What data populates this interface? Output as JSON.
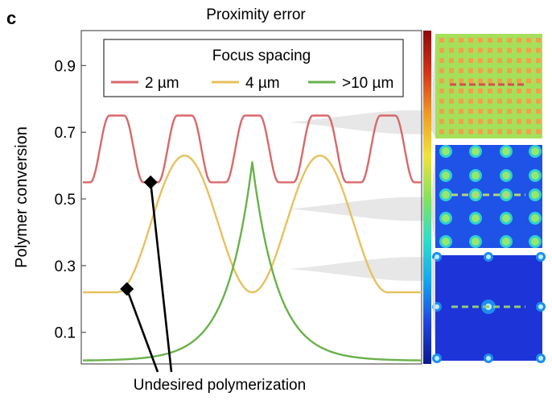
{
  "figure": {
    "panel_letter": "c",
    "annotation": "Undesired polymerization"
  },
  "chart_data": {
    "type": "line",
    "title": "Proximity error",
    "xlabel": "",
    "ylabel": "Polymer conversion",
    "ylim": [
      0.01,
      1.0
    ],
    "yticks": [
      0.1,
      0.3,
      0.5,
      0.7,
      0.9
    ],
    "ytick_labels": [
      "0.1",
      "0.3",
      "0.5",
      "0.7",
      "0.9"
    ],
    "grid": false,
    "legend": {
      "title": "Focus spacing",
      "placement": "top"
    },
    "series": [
      {
        "name": "2 µm",
        "color": "#d9686a",
        "baseline": 0.55,
        "peak": 0.75,
        "peak_positions": [
          0.1,
          0.3,
          0.5,
          0.7,
          0.9
        ],
        "profile": "2um"
      },
      {
        "name": "4 µm",
        "color": "#e7c15e",
        "baseline": 0.22,
        "peak": 0.63,
        "peak_positions": [
          0.3,
          0.7
        ],
        "profile": "4um"
      },
      {
        "name": ">10 µm",
        "color": "#6ab14c",
        "baseline": 0.015,
        "peak": 0.61,
        "peak_positions": [
          0.5
        ],
        "profile": "10um"
      }
    ],
    "markers": [
      {
        "series": "2 µm",
        "x": 0.2,
        "y": 0.55
      },
      {
        "series": "4 µm",
        "x": 0.13,
        "y": 0.23
      }
    ],
    "colorbar": {
      "colors": [
        "#0a1a8c",
        "#1f46e0",
        "#13a7f0",
        "#2fe0c8",
        "#86e35a",
        "#f2e23a",
        "#f29a22",
        "#d4331a",
        "#8a0b0b"
      ]
    },
    "insets": [
      {
        "pattern": "2um",
        "bg": "#a6e05a",
        "dot": "#f0a14a",
        "level": 0.73
      },
      {
        "pattern": "4um",
        "bg": "#1f52e6",
        "dot": "#95e86e",
        "level": 0.47
      },
      {
        "pattern": "10um",
        "bg": "#1c34d8",
        "dot": "#b8f0ff",
        "level": 0.29
      }
    ]
  }
}
